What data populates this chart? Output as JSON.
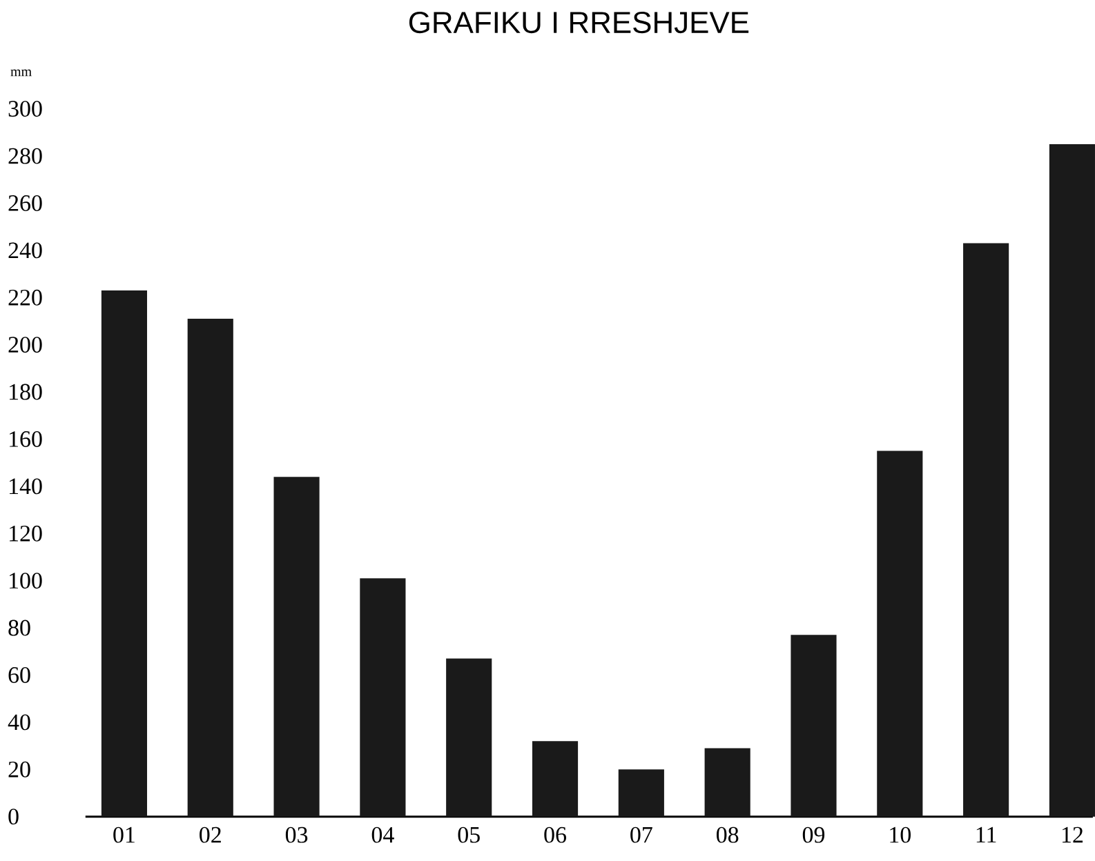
{
  "chart_data": {
    "type": "bar",
    "title": "GRAFIKU I RRESHJEVE",
    "ylabel": "mm",
    "categories": [
      "01",
      "02",
      "03",
      "04",
      "05",
      "06",
      "07",
      "08",
      "09",
      "10",
      "11",
      "12"
    ],
    "values": [
      223,
      211,
      144,
      101,
      67,
      32,
      20,
      29,
      77,
      155,
      243,
      285
    ],
    "color": "#1a1a1a",
    "ylim": [
      0,
      300
    ],
    "yticks": [
      0,
      20,
      40,
      60,
      80,
      100,
      120,
      140,
      160,
      180,
      200,
      220,
      240,
      260,
      280,
      300
    ],
    "grid": false
  }
}
